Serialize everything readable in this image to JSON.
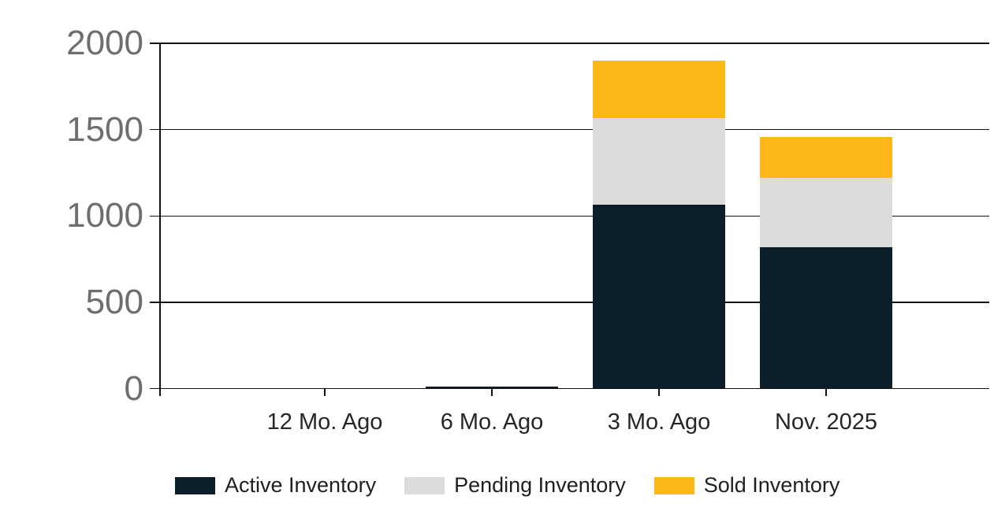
{
  "chart_data": {
    "type": "bar",
    "stacked": true,
    "title": "",
    "xlabel": "",
    "ylabel": "",
    "categories": [
      "12 Mo. Ago",
      "6 Mo. Ago",
      "3 Mo. Ago",
      "Nov. 2025"
    ],
    "series": [
      {
        "name": "Active Inventory",
        "color": "#0b1e2a",
        "values": [
          0,
          10,
          1065,
          820
        ]
      },
      {
        "name": "Pending Inventory",
        "color": "#dcdcdc",
        "values": [
          0,
          0,
          500,
          400
        ]
      },
      {
        "name": "Sold Inventory",
        "color": "#fbb817",
        "values": [
          0,
          0,
          335,
          235
        ]
      }
    ],
    "ylim": [
      0,
      2000
    ],
    "yticks": [
      0,
      500,
      1000,
      1500,
      2000
    ],
    "grid": true,
    "legend_position": "bottom",
    "colors": {
      "axis": "#111111",
      "ytick_label": "#6e6e6e",
      "xtick_label": "#262626",
      "legend_text": "#1f1f1f",
      "background": "#ffffff"
    }
  }
}
